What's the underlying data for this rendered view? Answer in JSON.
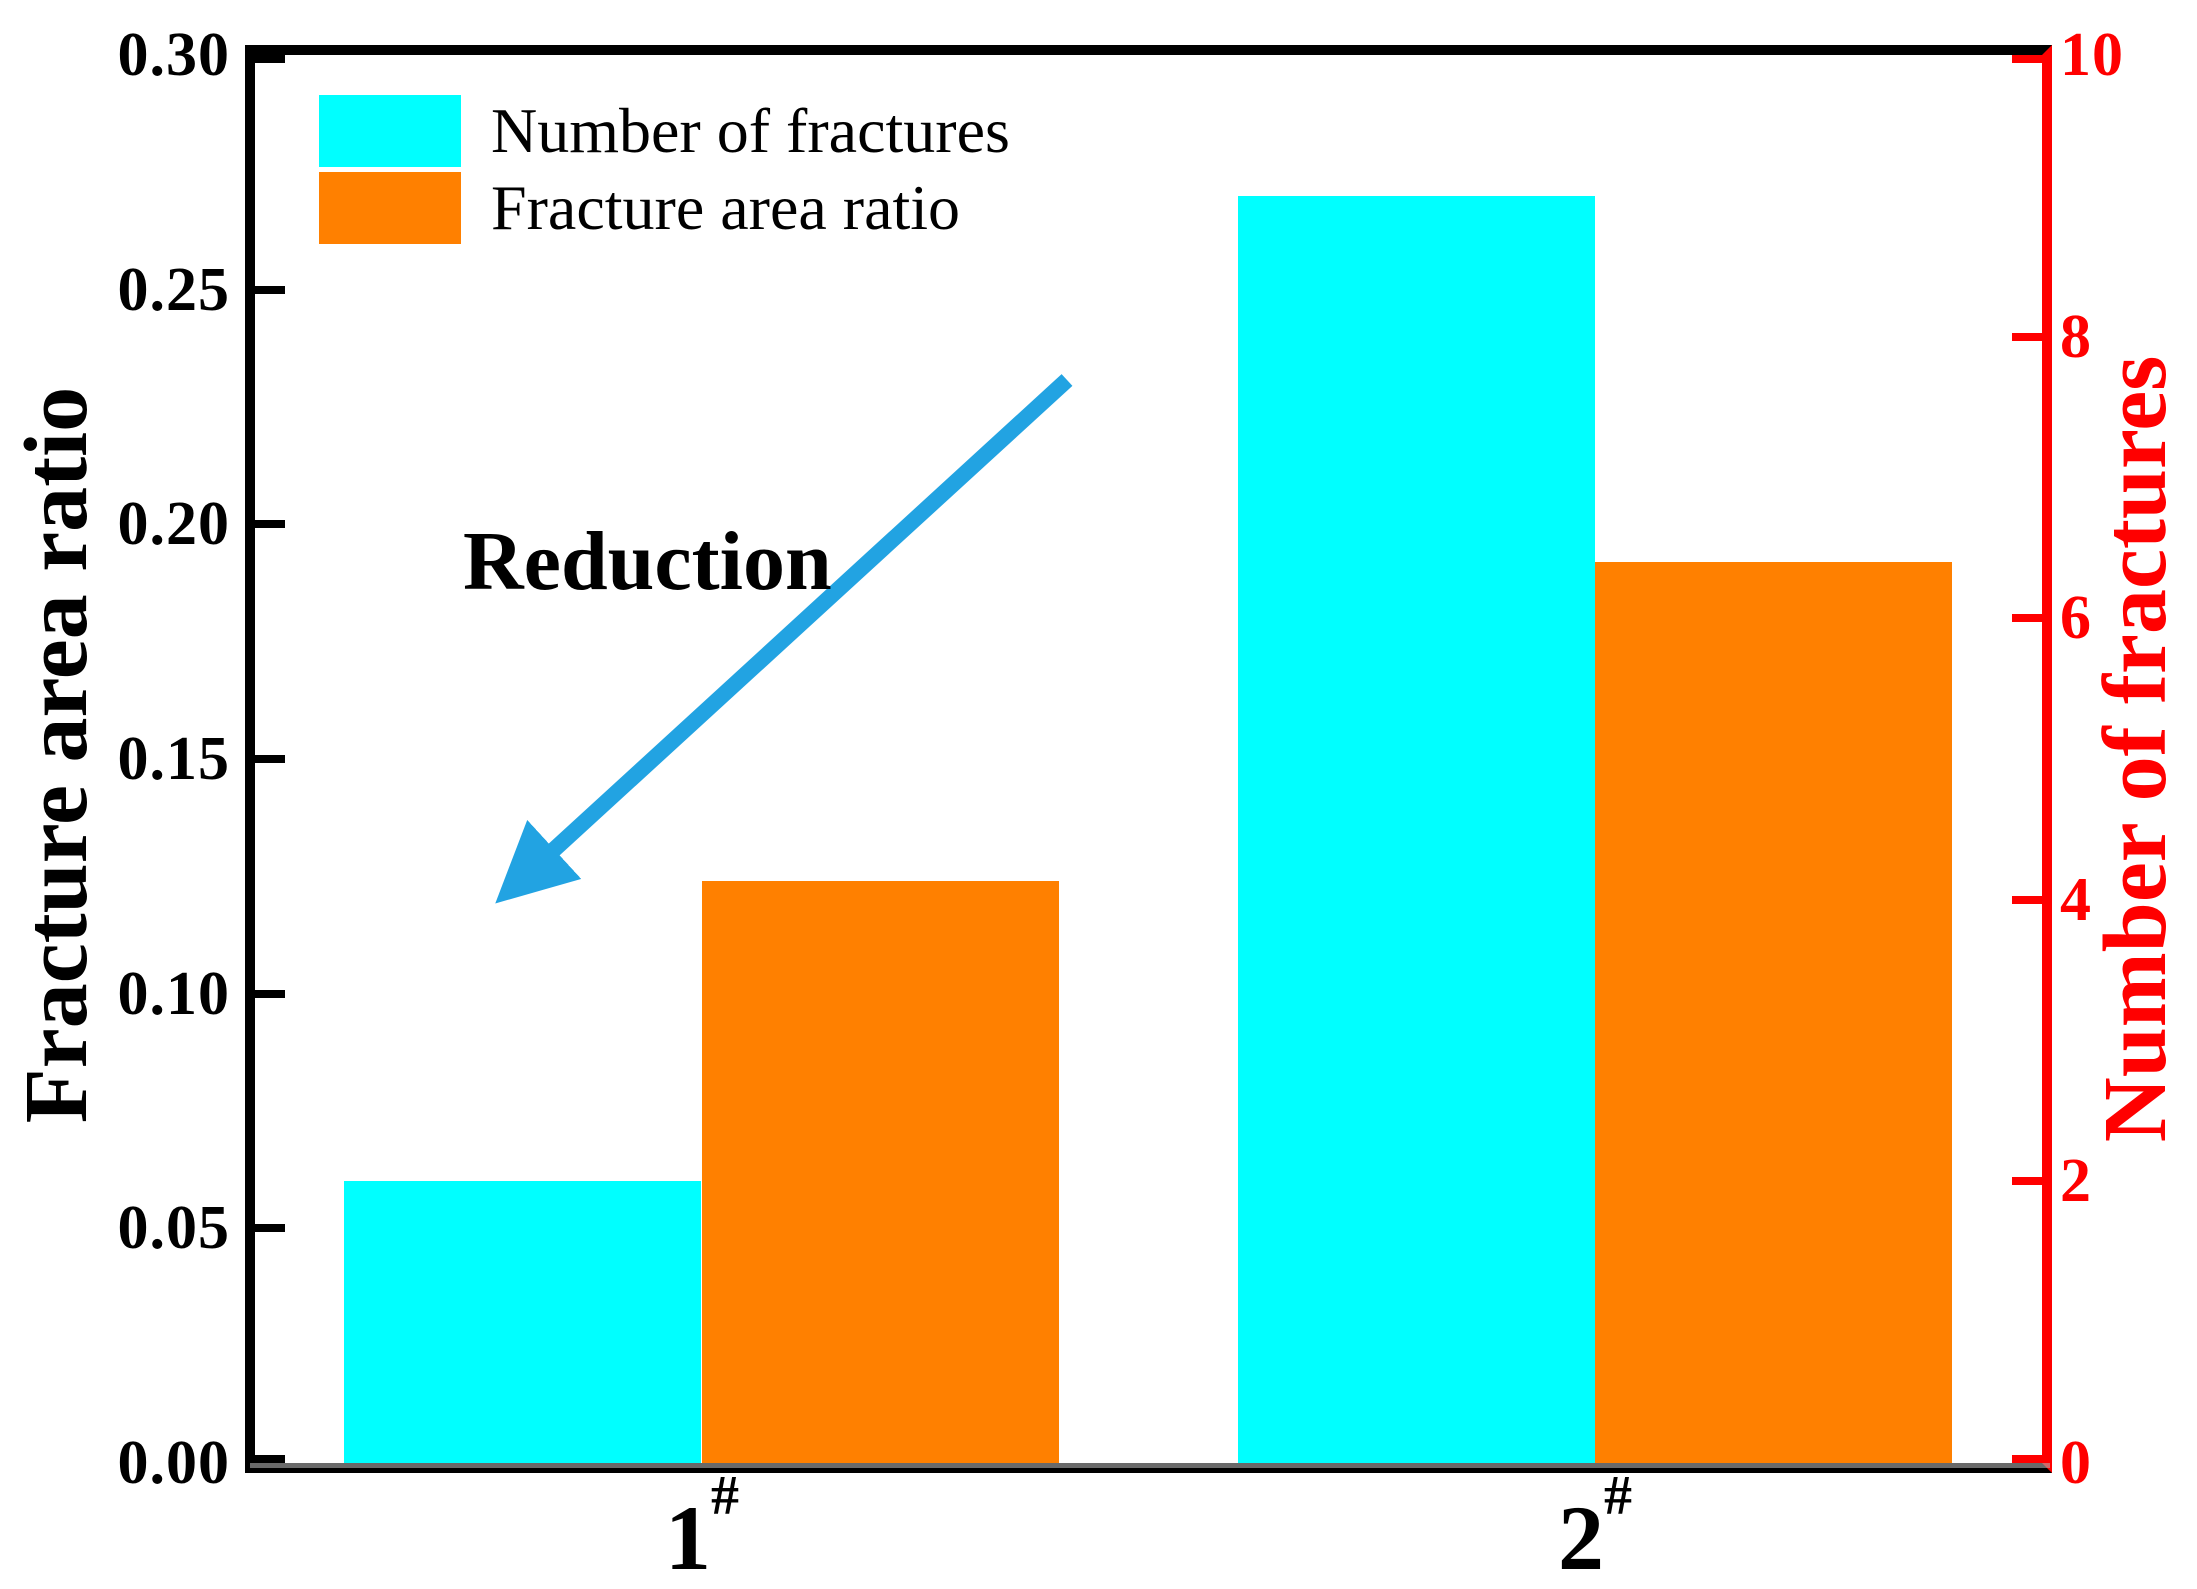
{
  "figure": {
    "background": "#ffffff"
  },
  "colors": {
    "bar_cyan": "#00ffff",
    "bar_orange": "#ff8000",
    "axis_black": "#000000",
    "axis_red": "#ff0000",
    "arrow_blue": "#22a3e2"
  },
  "legend": {
    "items": [
      {
        "label": "Number of fractures",
        "color": "#00ffff"
      },
      {
        "label": "Fracture area ratio",
        "color": "#ff8000"
      }
    ]
  },
  "chart_data": {
    "type": "bar",
    "categories": [
      "1#",
      "2#"
    ],
    "category_superscript": "#",
    "series": [
      {
        "name": "Number of fractures",
        "axis": "right",
        "color": "#00ffff",
        "values": [
          2,
          9
        ]
      },
      {
        "name": "Fracture area ratio",
        "axis": "left",
        "color": "#ff8000",
        "values": [
          0.124,
          0.192
        ]
      }
    ],
    "left_axis": {
      "label": "Fracture area ratio",
      "min": 0.0,
      "max": 0.3,
      "tick_labels": [
        "0.00",
        "0.05",
        "0.10",
        "0.15",
        "0.20",
        "0.25",
        "0.30"
      ],
      "color": "#000000"
    },
    "right_axis": {
      "label": "Number of fractures",
      "min": 0,
      "max": 10,
      "tick_labels": [
        "0",
        "2",
        "4",
        "6",
        "8",
        "10"
      ],
      "color": "#ff0000"
    },
    "bar_width_frac": 0.4,
    "grid": false,
    "legend_position": "top-left",
    "annotation": {
      "text": "Reduction",
      "arrow": {
        "from_frac": [
          0.4544,
          0.2308
        ],
        "to_frac": [
          0.1427,
          0.593
        ]
      }
    }
  }
}
